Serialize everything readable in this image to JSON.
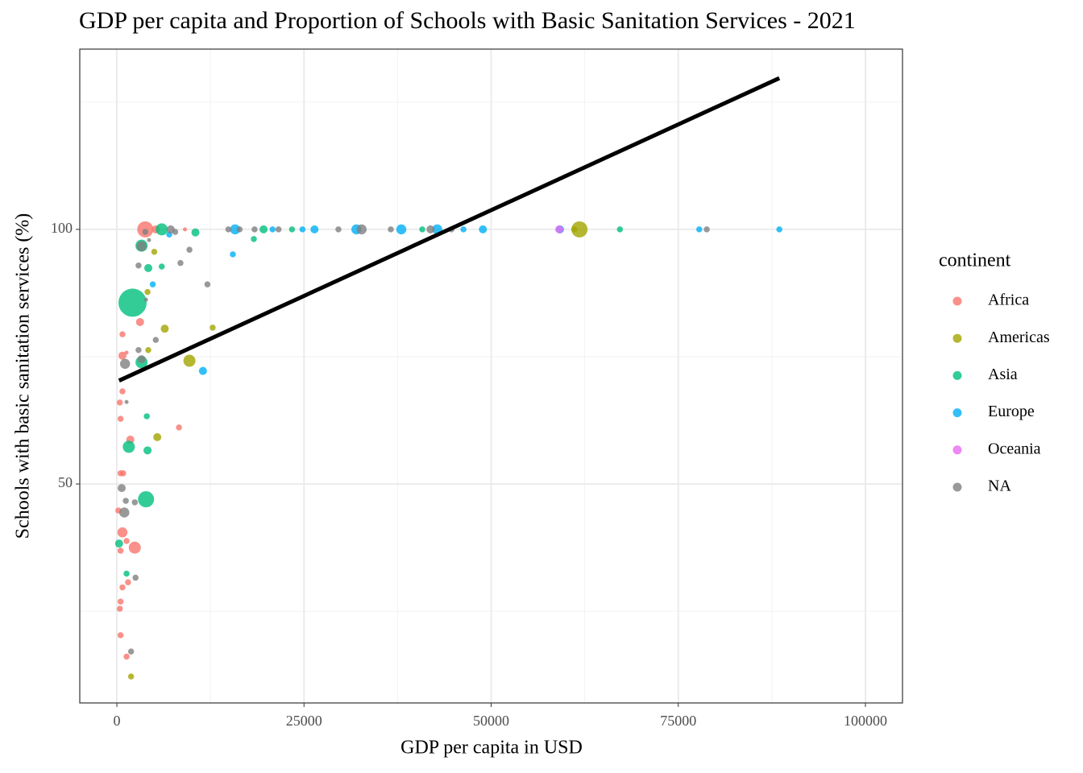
{
  "chart_data": {
    "type": "scatter",
    "title": "GDP per capita and Proportion of Schools with Basic Sanitation Services - 2021",
    "x_label": "GDP per capita in USD",
    "y_label": "Schools with basic sanitation services (%)",
    "legend_title": "continent",
    "legend_position": "right",
    "xlim": [
      -4950,
      104950
    ],
    "ylim": [
      7,
      135.4
    ],
    "xticks": [
      0,
      25000,
      50000,
      75000,
      100000
    ],
    "yticks": [
      50,
      100
    ],
    "xminor": [
      12500,
      37500,
      62500,
      87500
    ],
    "yminor": [
      25,
      75,
      125
    ],
    "grid": true,
    "opacity": 0.8,
    "trend": {
      "color": "#000000",
      "x": [
        300,
        88500
      ],
      "y": [
        70.3,
        129.7
      ]
    },
    "series": [
      {
        "name": "Africa",
        "color": "#F8766D",
        "x": [
          3800,
          5200,
          9100,
          3100,
          750,
          750,
          1300,
          750,
          400,
          500,
          1800,
          8300,
          500,
          850,
          200,
          750,
          1300,
          2400,
          500,
          1500,
          750,
          500,
          400,
          500,
          1300
        ],
        "values": [
          100,
          100,
          100,
          81.8,
          79.4,
          75.2,
          75.8,
          68.2,
          66,
          62.8,
          58.7,
          61.1,
          52.1,
          52.1,
          44.8,
          40.5,
          38.8,
          37.5,
          36.9,
          30.7,
          29.7,
          26.9,
          25.5,
          20.3,
          16.1
        ],
        "size": [
          4,
          2,
          1,
          2,
          1.5,
          2,
          1,
          1.5,
          1.5,
          1.5,
          2,
          1.5,
          1.5,
          1.5,
          1.5,
          2.5,
          1.5,
          3,
          1.5,
          1.5,
          1.5,
          1.5,
          1.5,
          1.5,
          1.5
        ]
      },
      {
        "name": "Americas",
        "color": "#A3A500",
        "x": [
          61800,
          61100,
          5000,
          4100,
          6400,
          12800,
          4200,
          9700,
          5400,
          1900
        ],
        "values": [
          100,
          100,
          95.6,
          87.7,
          80.5,
          80.7,
          76.3,
          74.2,
          59.2,
          12.2
        ],
        "size": [
          4,
          1.5,
          1.5,
          1.5,
          2,
          1.5,
          1.5,
          3,
          2,
          1.5
        ]
      },
      {
        "name": "Asia",
        "color": "#00BF7D",
        "x": [
          2100,
          3300,
          6000,
          10500,
          6000,
          4200,
          18300,
          19600,
          23400,
          40800,
          67200,
          3300,
          4000,
          1600,
          4100,
          3900,
          300,
          1300
        ],
        "values": [
          85.6,
          96.8,
          100,
          99.4,
          92.7,
          92.4,
          98.1,
          100,
          100,
          100,
          100,
          73.9,
          63.3,
          57.3,
          56.6,
          47,
          38.3,
          32.4
        ],
        "size": [
          7,
          3,
          3,
          2,
          1.5,
          2,
          1.5,
          2,
          1.5,
          1.5,
          1.5,
          3,
          1.5,
          3,
          2,
          4,
          2,
          1.5
        ]
      },
      {
        "name": "Europe",
        "color": "#00B0F6",
        "x": [
          4800,
          7000,
          15500,
          11500,
          15800,
          20800,
          24800,
          26400,
          32000,
          38000,
          42800,
          46300,
          48900,
          59200,
          77800,
          88500
        ],
        "values": [
          89.2,
          99,
          95.1,
          72.2,
          100,
          100,
          100,
          100,
          100,
          100,
          100,
          100,
          100,
          100,
          100,
          100
        ],
        "size": [
          1.5,
          1.5,
          1.5,
          2,
          2.5,
          1.5,
          1.5,
          2,
          2.5,
          2.5,
          2.5,
          1.5,
          2,
          2,
          1.5,
          1.5
        ]
      },
      {
        "name": "Oceania",
        "color": "#E76BF3",
        "x": [
          59100
        ],
        "values": [
          100
        ],
        "size": [
          2
        ]
      },
      {
        "name": "NA",
        "color": "#7F7F7F",
        "x": [
          3300,
          3800,
          4300,
          2900,
          8500,
          9700,
          12100,
          3900,
          5200,
          2900,
          3300,
          1100,
          1300,
          7200,
          7800,
          14900,
          16400,
          18400,
          21600,
          29600,
          32700,
          36600,
          41900,
          44700,
          78800,
          650,
          1200,
          2400,
          1000,
          2500,
          1900
        ],
        "values": [
          96.7,
          99.5,
          97.9,
          92.9,
          93.4,
          96,
          89.2,
          86.2,
          78.3,
          76.3,
          74.5,
          73.6,
          66.1,
          100,
          99.5,
          100,
          100,
          100,
          100,
          100,
          100,
          100,
          100,
          100,
          100,
          49.2,
          46.7,
          46.4,
          44.4,
          31.6,
          17.1
        ],
        "size": [
          2.5,
          1.5,
          1,
          1.5,
          1.5,
          1.5,
          1.5,
          1,
          1.5,
          1.5,
          2,
          2.5,
          1,
          2,
          1.5,
          1.5,
          1.5,
          1.5,
          1.5,
          1.5,
          2.5,
          1.5,
          2,
          1.5,
          1.5,
          2,
          1.5,
          1.5,
          2.5,
          1.5,
          1.5
        ]
      }
    ]
  }
}
